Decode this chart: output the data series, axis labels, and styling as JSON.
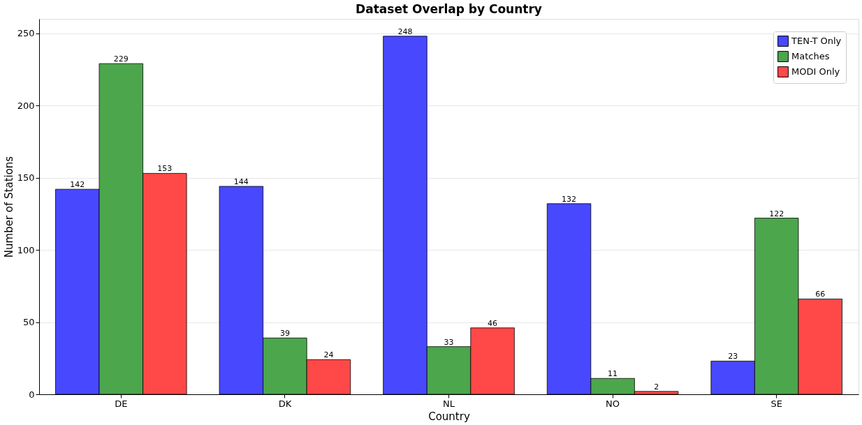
{
  "chart_data": {
    "type": "bar",
    "title": "Dataset Overlap by Country",
    "xlabel": "Country",
    "ylabel": "Number of Stations",
    "categories": [
      "DE",
      "DK",
      "NL",
      "NO",
      "SE"
    ],
    "series": [
      {
        "name": "TEN-T Only",
        "color": "#4848ff",
        "values": [
          142,
          144,
          248,
          132,
          23
        ]
      },
      {
        "name": "Matches",
        "color": "#4ca64c",
        "values": [
          229,
          39,
          33,
          11,
          122
        ]
      },
      {
        "name": "MODI Only",
        "color": "#ff4848",
        "values": [
          153,
          24,
          46,
          2,
          66
        ]
      }
    ],
    "ylim": [
      0,
      260
    ],
    "yticks": [
      0,
      50,
      100,
      150,
      200,
      250
    ],
    "grid": "y",
    "legend": "top right",
    "data_labels": true
  }
}
